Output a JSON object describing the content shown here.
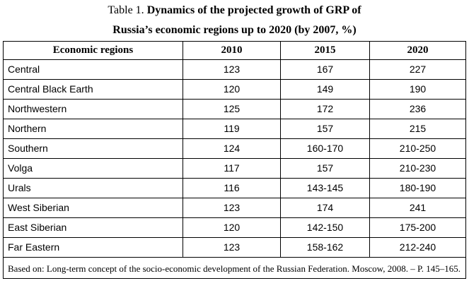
{
  "caption": {
    "prefix": "Table 1. ",
    "title_line1": "Dynamics of the projected growth of GRP of",
    "title_line2": "Russia’s economic regions up to 2020 (by 2007, %)"
  },
  "table": {
    "headers": [
      "Economic regions",
      "2010",
      "2015",
      "2020"
    ],
    "rows": [
      [
        "Central",
        "123",
        "167",
        "227"
      ],
      [
        "Central Black Earth",
        "120",
        "149",
        "190"
      ],
      [
        "Northwestern",
        "125",
        "172",
        "236"
      ],
      [
        "Northern",
        "119",
        "157",
        "215"
      ],
      [
        "Southern",
        "124",
        "160-170",
        "210-250"
      ],
      [
        "Volga",
        "117",
        "157",
        "210-230"
      ],
      [
        "Urals",
        "116",
        "143-145",
        "180-190"
      ],
      [
        "West Siberian",
        "123",
        "174",
        "241"
      ],
      [
        "East Siberian",
        "120",
        "142-150",
        "175-200"
      ],
      [
        "Far Eastern",
        "123",
        "158-162",
        "212-240"
      ]
    ],
    "source_note": "Based on: Long-term concept of the socio-economic development of the Russian Federation. Moscow, 2008. – P. 145–165."
  }
}
